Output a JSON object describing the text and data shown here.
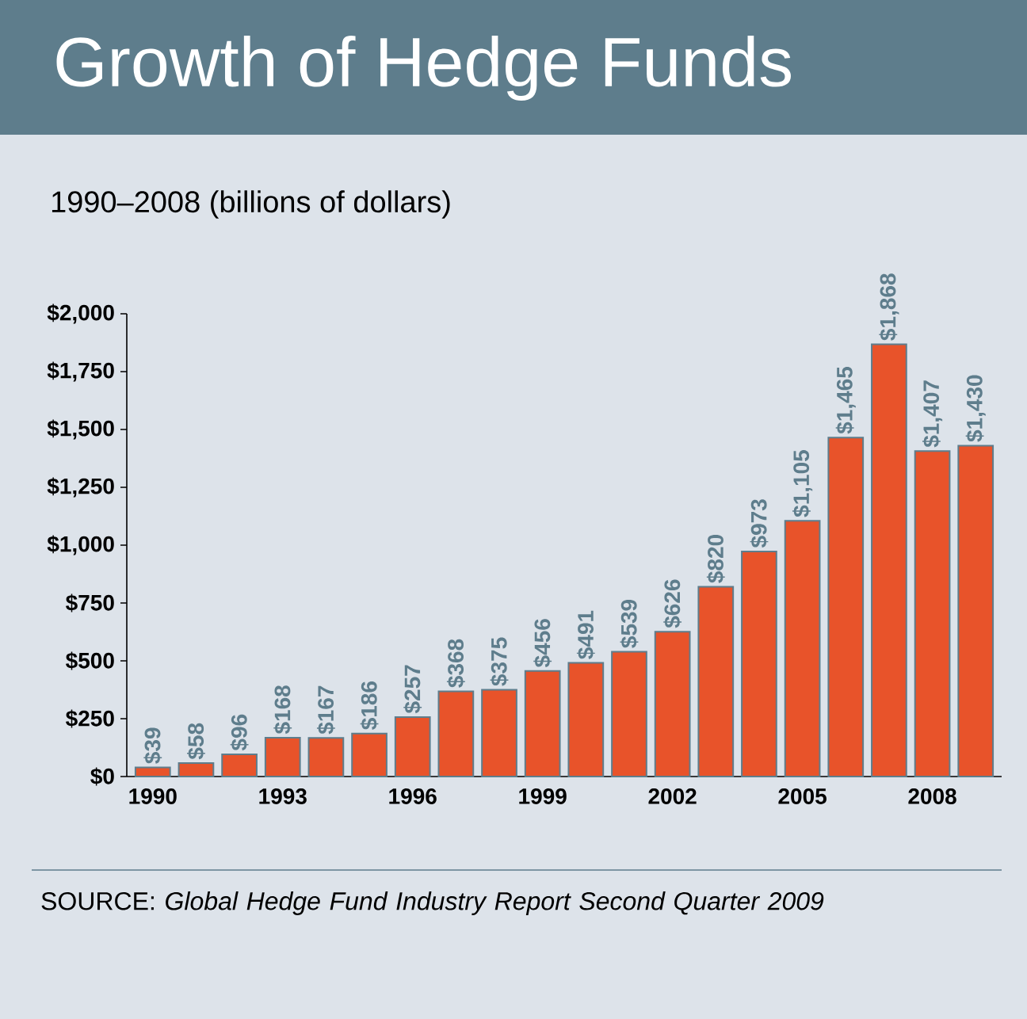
{
  "chart_data": {
    "type": "bar",
    "title": "Growth of Hedge Funds",
    "subtitle": "1990–2008 (billions of dollars)",
    "categories": [
      "1990",
      null,
      null,
      "1993",
      null,
      null,
      "1996",
      null,
      null,
      "1999",
      null,
      null,
      "2002",
      null,
      null,
      "2005",
      null,
      null,
      "2008",
      null
    ],
    "values": [
      39,
      58,
      96,
      168,
      167,
      186,
      257,
      368,
      375,
      456,
      491,
      539,
      626,
      820,
      973,
      1105,
      1465,
      1868,
      1407,
      1430
    ],
    "value_labels": [
      "$39",
      "$58",
      "$96",
      "$168",
      "$167",
      "$186",
      "$257",
      "$368",
      "$375",
      "$456",
      "$491",
      "$539",
      "$626",
      "$820",
      "$973",
      "$1,105",
      "$1,465",
      "$1,868",
      "$1,407",
      "$1,430"
    ],
    "color": "#e8532a",
    "ylim": [
      0,
      2000
    ],
    "yticks": [
      {
        "value": 0,
        "label": "$0"
      },
      {
        "value": 250,
        "label": "$250"
      },
      {
        "value": 500,
        "label": "$500"
      },
      {
        "value": 750,
        "label": "$750"
      },
      {
        "value": 1000,
        "label": "$1,000"
      },
      {
        "value": 1250,
        "label": "$1,250"
      },
      {
        "value": 1500,
        "label": "$1,500"
      },
      {
        "value": 1750,
        "label": "$1,750"
      },
      {
        "value": 2000,
        "label": "$2,000"
      }
    ],
    "grid": false,
    "annotations": [
      "SOURCE: *Global Hedge Fund Industry Report Second Quarter 2009*"
    ]
  }
}
